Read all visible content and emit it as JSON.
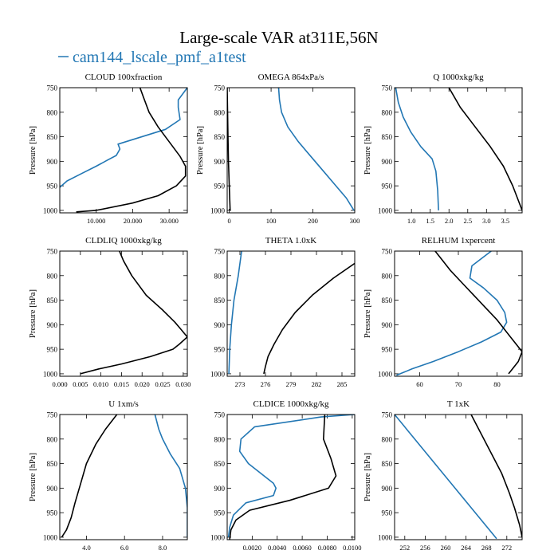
{
  "header": {
    "title": "Large-scale VAR at311E,56N",
    "legend_label": "cam144_lscale_pmf_a1test",
    "legend_color": "#2277b4"
  },
  "colors": {
    "blue": "#2277b4",
    "black": "#000000"
  },
  "chart_data": [
    {
      "type": "line",
      "title": "CLOUD 100xfraction",
      "ylabel": "Pressure [hPa]",
      "xlim": [
        0,
        35
      ],
      "ylim": [
        1005,
        750
      ],
      "xticks": [
        10,
        20,
        30
      ],
      "xtick_labels": [
        "10.000",
        "20.000",
        "30.000"
      ],
      "yticks": [
        750,
        800,
        850,
        900,
        950,
        1000
      ],
      "ytick_labels": [
        "750",
        "800",
        "850",
        "900",
        "950",
        "1000"
      ],
      "series": [
        {
          "color": "blue",
          "points": [
            [
              35,
              750
            ],
            [
              32.5,
              775
            ],
            [
              32.5,
              790
            ],
            [
              33,
              815
            ],
            [
              29,
              835
            ],
            [
              16,
              865
            ],
            [
              16.5,
              875
            ],
            [
              15.5,
              888
            ],
            [
              13,
              898
            ],
            [
              10,
              910
            ],
            [
              6,
              925
            ],
            [
              2,
              940
            ],
            [
              0,
              953
            ]
          ]
        },
        {
          "color": "black",
          "points": [
            [
              22,
              750
            ],
            [
              23,
              770
            ],
            [
              24.5,
              800
            ],
            [
              27,
              830
            ],
            [
              30,
              860
            ],
            [
              33,
              890
            ],
            [
              34.5,
              910
            ],
            [
              34.5,
              930
            ],
            [
              32,
              950
            ],
            [
              27,
              970
            ],
            [
              20,
              985
            ],
            [
              10,
              1000
            ],
            [
              4.5,
              1003
            ]
          ]
        }
      ]
    },
    {
      "type": "line",
      "title": "OMEGA 864xPa/s",
      "ylabel": "Pressure [hPa]",
      "xlim": [
        -5,
        300
      ],
      "ylim": [
        1005,
        750
      ],
      "xticks": [
        0,
        100,
        200,
        300
      ],
      "xtick_labels": [
        "0",
        "100",
        "200",
        "300"
      ],
      "yticks": [
        750,
        800,
        850,
        900,
        950,
        1000
      ],
      "ytick_labels": [
        "750",
        "800",
        "850",
        "900",
        "950",
        "1000"
      ],
      "series": [
        {
          "color": "blue",
          "points": [
            [
              118,
              750
            ],
            [
              120,
              775
            ],
            [
              125,
              800
            ],
            [
              140,
              830
            ],
            [
              165,
              860
            ],
            [
              195,
              890
            ],
            [
              225,
              920
            ],
            [
              255,
              950
            ],
            [
              280,
              975
            ],
            [
              298,
              1000
            ]
          ]
        },
        {
          "color": "black",
          "points": [
            [
              -5,
              750
            ],
            [
              -4,
              800
            ],
            [
              -3,
              850
            ],
            [
              -2,
              900
            ],
            [
              0,
              950
            ],
            [
              2,
              1000
            ]
          ]
        }
      ]
    },
    {
      "type": "line",
      "title": "Q 1000xkg/kg",
      "ylabel": "Pressure [hPa]",
      "xlim": [
        0.55,
        3.95
      ],
      "ylim": [
        1005,
        750
      ],
      "xticks": [
        1.0,
        1.5,
        2.0,
        2.5,
        3.0,
        3.5
      ],
      "xtick_labels": [
        "1.0",
        "1.5",
        "2.0",
        "2.5",
        "3.0",
        "3.5"
      ],
      "yticks": [
        750,
        800,
        850,
        900,
        950,
        1000
      ],
      "ytick_labels": [
        "750",
        "800",
        "850",
        "900",
        "950",
        "1000"
      ],
      "series": [
        {
          "color": "blue",
          "points": [
            [
              0.58,
              750
            ],
            [
              0.65,
              780
            ],
            [
              0.78,
              810
            ],
            [
              0.98,
              840
            ],
            [
              1.25,
              870
            ],
            [
              1.55,
              895
            ],
            [
              1.65,
              920
            ],
            [
              1.7,
              960
            ],
            [
              1.72,
              1000
            ]
          ]
        },
        {
          "color": "black",
          "points": [
            [
              2.0,
              750
            ],
            [
              2.3,
              790
            ],
            [
              2.7,
              830
            ],
            [
              3.1,
              870
            ],
            [
              3.45,
              910
            ],
            [
              3.7,
              950
            ],
            [
              3.85,
              980
            ],
            [
              3.95,
              1000
            ]
          ]
        }
      ]
    },
    {
      "type": "line",
      "title": "CLDLIQ 1000xkg/kg",
      "ylabel": "Pressure [hPa]",
      "xlim": [
        0,
        0.031
      ],
      "ylim": [
        1005,
        750
      ],
      "xticks": [
        0.0,
        0.005,
        0.01,
        0.015,
        0.02,
        0.025,
        0.03
      ],
      "xtick_labels": [
        "0.000",
        "0.005",
        "0.010",
        "0.015",
        "0.020",
        "0.025",
        "0.030"
      ],
      "yticks": [
        750,
        800,
        850,
        900,
        950,
        1000
      ],
      "ytick_labels": [
        "750",
        "800",
        "850",
        "900",
        "950",
        "1000"
      ],
      "series": [
        {
          "color": "black",
          "points": [
            [
              0.0145,
              750
            ],
            [
              0.0155,
              770
            ],
            [
              0.0175,
              800
            ],
            [
              0.021,
              840
            ],
            [
              0.025,
              870
            ],
            [
              0.028,
              895
            ],
            [
              0.0295,
              910
            ],
            [
              0.031,
              925
            ],
            [
              0.029,
              940
            ],
            [
              0.0275,
              950
            ],
            [
              0.022,
              965
            ],
            [
              0.015,
              980
            ],
            [
              0.0095,
              990
            ],
            [
              0.005,
              1000
            ]
          ]
        }
      ]
    },
    {
      "type": "line",
      "title": "THETA 1.0xK",
      "ylabel": "",
      "xlim": [
        271.5,
        286.5
      ],
      "ylim": [
        1005,
        750
      ],
      "xticks": [
        273,
        276,
        279,
        282,
        285
      ],
      "xtick_labels": [
        "273",
        "276",
        "279",
        "282",
        "285"
      ],
      "yticks": [
        750,
        800,
        850,
        900,
        950,
        1000
      ],
      "ytick_labels": [
        "750",
        "800",
        "850",
        "900",
        "950",
        "1000"
      ],
      "series": [
        {
          "color": "blue",
          "points": [
            [
              273.2,
              750
            ],
            [
              272.8,
              800
            ],
            [
              272.3,
              850
            ],
            [
              272.0,
              900
            ],
            [
              271.8,
              950
            ],
            [
              271.7,
              1000
            ]
          ]
        },
        {
          "color": "black",
          "points": [
            [
              286.5,
              775
            ],
            [
              284,
              805
            ],
            [
              281.5,
              840
            ],
            [
              279.5,
              875
            ],
            [
              278,
              910
            ],
            [
              277,
              940
            ],
            [
              276.3,
              965
            ],
            [
              276,
              985
            ],
            [
              275.8,
              1000
            ]
          ]
        }
      ]
    },
    {
      "type": "line",
      "title": "RELHUM 1xpercent",
      "ylabel": "Pressure [hPa]",
      "xlim": [
        53.5,
        86.5
      ],
      "ylim": [
        1005,
        750
      ],
      "xticks": [
        60,
        70,
        80
      ],
      "xtick_labels": [
        "60",
        "70",
        "80"
      ],
      "yticks": [
        750,
        800,
        850,
        900,
        950,
        1000
      ],
      "ytick_labels": [
        "750",
        "800",
        "850",
        "900",
        "950",
        "1000"
      ],
      "series": [
        {
          "color": "blue",
          "points": [
            [
              78.5,
              750
            ],
            [
              73.5,
              780
            ],
            [
              73,
              805
            ],
            [
              76.5,
              825
            ],
            [
              80,
              850
            ],
            [
              82,
              875
            ],
            [
              82.5,
              895
            ],
            [
              81,
              915
            ],
            [
              76,
              935
            ],
            [
              70,
              955
            ],
            [
              63.5,
              975
            ],
            [
              58,
              990
            ],
            [
              54,
              1003
            ]
          ]
        },
        {
          "color": "black",
          "points": [
            [
              64,
              750
            ],
            [
              66,
              770
            ],
            [
              68,
              790
            ],
            [
              71,
              815
            ],
            [
              74,
              840
            ],
            [
              77,
              865
            ],
            [
              80,
              890
            ],
            [
              83,
              920
            ],
            [
              85,
              940
            ],
            [
              86.5,
              955
            ],
            [
              85.5,
              975
            ],
            [
              84,
              990
            ],
            [
              83,
              1000
            ]
          ]
        }
      ]
    },
    {
      "type": "line",
      "title": "U 1xm/s",
      "ylabel": "Pressure [hPa]",
      "xlim": [
        2.6,
        9.3
      ],
      "ylim": [
        1005,
        750
      ],
      "xticks": [
        4.0,
        6.0,
        8.0
      ],
      "xtick_labels": [
        "4.0",
        "6.0",
        "8.0"
      ],
      "yticks": [
        750,
        800,
        850,
        900,
        950,
        1000
      ],
      "ytick_labels": [
        "750",
        "800",
        "850",
        "900",
        "950",
        "1000"
      ],
      "series": [
        {
          "color": "blue",
          "points": [
            [
              7.6,
              750
            ],
            [
              7.8,
              780
            ],
            [
              8.0,
              800
            ],
            [
              8.4,
              830
            ],
            [
              8.9,
              860
            ],
            [
              9.2,
              900
            ],
            [
              9.3,
              940
            ],
            [
              9.3,
              1000
            ]
          ]
        },
        {
          "color": "black",
          "points": [
            [
              5.6,
              750
            ],
            [
              5.0,
              780
            ],
            [
              4.5,
              810
            ],
            [
              4.0,
              850
            ],
            [
              3.7,
              890
            ],
            [
              3.4,
              930
            ],
            [
              3.2,
              960
            ],
            [
              2.95,
              985
            ],
            [
              2.7,
              1000
            ]
          ]
        }
      ]
    },
    {
      "type": "line",
      "title": "CLDICE 1000xkg/kg",
      "ylabel": "",
      "xlim": [
        0,
        0.0102
      ],
      "ylim": [
        1005,
        750
      ],
      "xticks": [
        0.002,
        0.004,
        0.006,
        0.008,
        0.01
      ],
      "xtick_labels": [
        "0.0020",
        "0.0040",
        "0.0060",
        "0.0080",
        "0.0100"
      ],
      "yticks": [
        750,
        800,
        850,
        900,
        950,
        1000
      ],
      "ytick_labels": [
        "750",
        "800",
        "850",
        "900",
        "950",
        "1000"
      ],
      "series": [
        {
          "color": "blue",
          "points": [
            [
              0.0102,
              750
            ],
            [
              0.0075,
              755
            ],
            [
              0.0022,
              775
            ],
            [
              0.0011,
              800
            ],
            [
              0.001,
              825
            ],
            [
              0.0017,
              850
            ],
            [
              0.0037,
              890
            ],
            [
              0.0039,
              900
            ],
            [
              0.0037,
              915
            ],
            [
              0.0015,
              930
            ],
            [
              0.0005,
              955
            ],
            [
              0.0002,
              980
            ],
            [
              0.0001,
              1000
            ]
          ]
        },
        {
          "color": "black",
          "points": [
            [
              0.0078,
              750
            ],
            [
              0.0077,
              800
            ],
            [
              0.0083,
              840
            ],
            [
              0.0087,
              875
            ],
            [
              0.0081,
              900
            ],
            [
              0.005,
              925
            ],
            [
              0.0018,
              945
            ],
            [
              0.0007,
              965
            ],
            [
              0.0003,
              985
            ],
            [
              0.0002,
              1005
            ]
          ]
        }
      ]
    },
    {
      "type": "line",
      "title": "T 1xK",
      "ylabel": "Pressure [hPa]",
      "xlim": [
        250,
        275
      ],
      "ylim": [
        1005,
        750
      ],
      "xticks": [
        252,
        256,
        260,
        264,
        268,
        272
      ],
      "xtick_labels": [
        "252",
        "256",
        "260",
        "264",
        "268",
        "272"
      ],
      "yticks": [
        750,
        800,
        850,
        900,
        950,
        1000
      ],
      "ytick_labels": [
        "750",
        "800",
        "850",
        "900",
        "950",
        "1000"
      ],
      "series": [
        {
          "color": "blue",
          "points": [
            [
              250,
              750
            ],
            [
              270,
              1003
            ]
          ]
        },
        {
          "color": "black",
          "points": [
            [
              265,
              750
            ],
            [
              267,
              790
            ],
            [
              269,
              830
            ],
            [
              271,
              870
            ],
            [
              272.5,
              910
            ],
            [
              273.5,
              940
            ],
            [
              274.5,
              975
            ],
            [
              275,
              1000
            ]
          ]
        }
      ]
    }
  ]
}
